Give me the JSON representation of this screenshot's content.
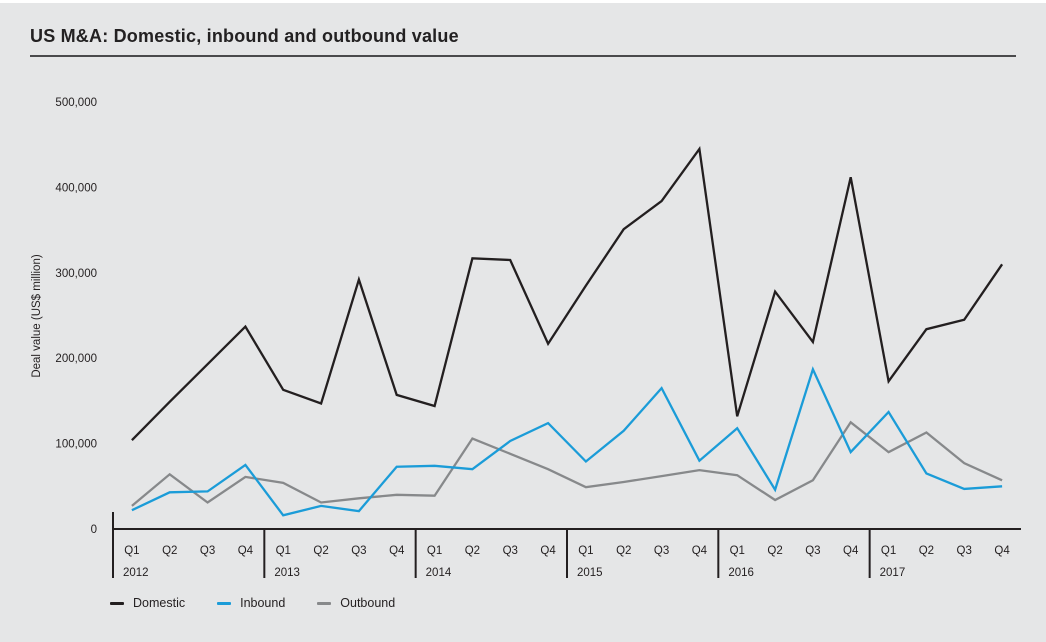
{
  "page": {
    "title": "US M&A: Domestic, inbound and outbound value"
  },
  "colors": {
    "background": "#e5e6e7",
    "axis": "#231f20",
    "text": "#231f20",
    "title_rule": "#4a4a4c",
    "domestic": "#231f20",
    "inbound": "#1b9cd8",
    "outbound": "#87898b"
  },
  "chart_data": {
    "type": "line",
    "title": "US M&A: Domestic, inbound and outbound value",
    "xlabel": "",
    "ylabel": "Deal value (US$ million)",
    "ylim": [
      0,
      500000
    ],
    "grid": false,
    "legend_position": "bottom",
    "y_ticks": [
      0,
      100000,
      200000,
      300000,
      400000,
      500000
    ],
    "y_tick_labels": [
      "0",
      "100,000",
      "200,000",
      "300,000",
      "400,000",
      "500,000"
    ],
    "years": [
      "2012",
      "2013",
      "2014",
      "2015",
      "2016",
      "2017"
    ],
    "quarters": [
      "Q1",
      "Q2",
      "Q3",
      "Q4"
    ],
    "categories": [
      "Q1 2012",
      "Q2 2012",
      "Q3 2012",
      "Q4 2012",
      "Q1 2013",
      "Q2 2013",
      "Q3 2013",
      "Q4 2013",
      "Q1 2014",
      "Q2 2014",
      "Q3 2014",
      "Q4 2014",
      "Q1 2015",
      "Q2 2015",
      "Q3 2015",
      "Q4 2015",
      "Q1 2016",
      "Q2 2016",
      "Q3 2016",
      "Q4 2016",
      "Q1 2017",
      "Q2 2017",
      "Q3 2017",
      "Q4 2017"
    ],
    "series": [
      {
        "name": "Domestic",
        "color": "#231f20",
        "values": [
          104000,
          149000,
          193000,
          237000,
          163000,
          147000,
          292000,
          157000,
          144000,
          317000,
          315000,
          217000,
          285000,
          351000,
          384000,
          445000,
          132000,
          278000,
          219000,
          412000,
          173000,
          234000,
          245000,
          310000
        ]
      },
      {
        "name": "Inbound",
        "color": "#1b9cd8",
        "values": [
          22000,
          43000,
          44000,
          75000,
          16000,
          27000,
          21000,
          73000,
          74000,
          70000,
          103000,
          124000,
          79000,
          115000,
          165000,
          80000,
          118000,
          46000,
          187000,
          90000,
          137000,
          65000,
          47000,
          50000
        ]
      },
      {
        "name": "Outbound",
        "color": "#87898b",
        "values": [
          27000,
          64000,
          31000,
          61000,
          54000,
          31000,
          36000,
          40000,
          39000,
          106000,
          88000,
          70000,
          49000,
          55000,
          62000,
          69000,
          63000,
          34000,
          57000,
          125000,
          90000,
          113000,
          77000,
          57000
        ]
      }
    ]
  }
}
